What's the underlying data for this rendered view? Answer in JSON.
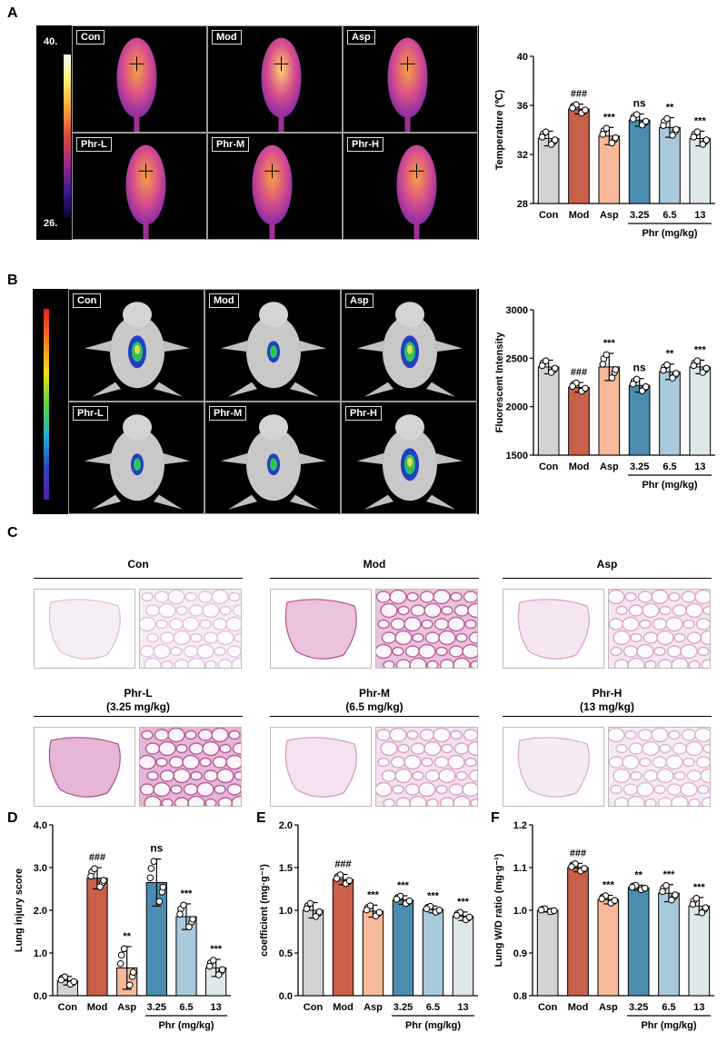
{
  "panels": {
    "A": {
      "letter": "A",
      "scale_max": "40.",
      "scale_min": "26.",
      "tags": [
        "Con",
        "Mod",
        "Asp",
        "Phr-L",
        "Phr-M",
        "Phr-H"
      ]
    },
    "B": {
      "letter": "B",
      "tags": [
        "Con",
        "Mod",
        "Asp",
        "Phr-L",
        "Phr-M",
        "Phr-H"
      ]
    },
    "C": {
      "letter": "C",
      "groups": [
        {
          "title": "Con",
          "subtitle": ""
        },
        {
          "title": "Mod",
          "subtitle": ""
        },
        {
          "title": "Asp",
          "subtitle": ""
        },
        {
          "title": "Phr-L",
          "subtitle": "(3.25 mg/kg)"
        },
        {
          "title": "Phr-M",
          "subtitle": "(6.5 mg/kg)"
        },
        {
          "title": "Phr-H",
          "subtitle": "(13 mg/kg)"
        }
      ]
    },
    "D": {
      "letter": "D"
    },
    "E": {
      "letter": "E"
    },
    "F": {
      "letter": "F"
    }
  },
  "colors": {
    "Con": "#d3d3d3",
    "Mod": "#c9604a",
    "Asp": "#f7b99a",
    "Phr-3.25": "#4a8db0",
    "Phr-6.5": "#a9c9dc",
    "Phr-13": "#dde8ea"
  },
  "chart_data": [
    {
      "id": "A",
      "type": "bar",
      "categories": [
        "Con",
        "Mod",
        "Asp",
        "3.25",
        "6.5",
        "13"
      ],
      "values": [
        33.3,
        35.7,
        33.5,
        34.8,
        34.2,
        33.3
      ],
      "errors": [
        0.6,
        0.4,
        0.7,
        0.5,
        0.8,
        0.6
      ],
      "annotations": [
        "",
        "###",
        "***",
        "ns",
        "**",
        "***"
      ],
      "ylabel": "Temperature  (℃)",
      "ylim": [
        28,
        40
      ],
      "yticks": [
        28,
        32,
        36,
        40
      ],
      "group_label": "Phr  (mg/kg)"
    },
    {
      "id": "B",
      "type": "bar",
      "categories": [
        "Con",
        "Mod",
        "Asp",
        "3.25",
        "6.5",
        "13"
      ],
      "values": [
        2410,
        2200,
        2410,
        2220,
        2360,
        2410
      ],
      "errors": [
        70,
        50,
        140,
        70,
        80,
        70
      ],
      "annotations": [
        "",
        "###",
        "***",
        "ns",
        "**",
        "***"
      ],
      "ylabel": "Fluorescent Intensity",
      "ylim": [
        1500,
        3000
      ],
      "yticks": [
        1500,
        2000,
        2500,
        3000
      ],
      "group_label": "Phr  (mg/kg)"
    },
    {
      "id": "D",
      "type": "bar",
      "categories": [
        "Con",
        "Mod",
        "Asp",
        "3.25",
        "6.5",
        "13"
      ],
      "values": [
        0.35,
        2.75,
        0.65,
        2.65,
        1.85,
        0.65
      ],
      "errors": [
        0.1,
        0.25,
        0.5,
        0.55,
        0.3,
        0.2
      ],
      "annotations": [
        "",
        "###",
        "**",
        "ns",
        "***",
        "***"
      ],
      "ylabel": "Lung injury score",
      "ylim": [
        0,
        4
      ],
      "yticks": [
        0.0,
        1.0,
        2.0,
        3.0,
        4.0
      ],
      "group_label": "Phr (mg/kg)"
    },
    {
      "id": "E",
      "type": "bar",
      "categories": [
        "Con",
        "Mod",
        "Asp",
        "3.25",
        "6.5",
        "13"
      ],
      "values": [
        1.0,
        1.36,
        0.99,
        1.12,
        1.01,
        0.93
      ],
      "errors": [
        0.09,
        0.06,
        0.07,
        0.05,
        0.04,
        0.05
      ],
      "annotations": [
        "",
        "###",
        "***",
        "***",
        "***",
        "***"
      ],
      "ylabel": "coefficient (mg·g⁻¹)",
      "ylim": [
        0,
        2
      ],
      "yticks": [
        0.0,
        0.5,
        1.0,
        1.5,
        2.0
      ],
      "group_label": "Phr (mg/kg)"
    },
    {
      "id": "F",
      "type": "bar",
      "categories": [
        "Con",
        "Mod",
        "Asp",
        "3.25",
        "6.5",
        "13"
      ],
      "values": [
        1.0,
        1.1,
        1.025,
        1.053,
        1.04,
        1.01
      ],
      "errors": [
        0.004,
        0.01,
        0.01,
        0.006,
        0.02,
        0.02
      ],
      "annotations": [
        "",
        "###",
        "***",
        "**",
        "***",
        "***"
      ],
      "ylabel": "Lung  W/D ratio (mg·g⁻¹)",
      "ylim": [
        0.8,
        1.2
      ],
      "yticks": [
        0.8,
        0.9,
        1.0,
        1.1,
        1.2
      ],
      "group_label": "Phr (mg/kg)"
    }
  ]
}
